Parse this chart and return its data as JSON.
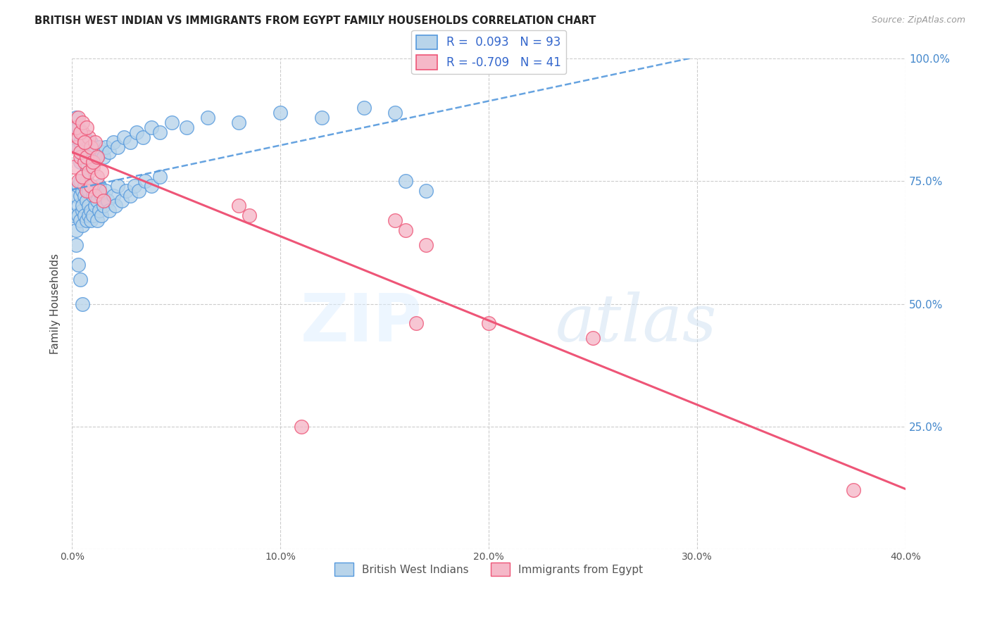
{
  "title": "BRITISH WEST INDIAN VS IMMIGRANTS FROM EGYPT FAMILY HOUSEHOLDS CORRELATION CHART",
  "source": "Source: ZipAtlas.com",
  "ylabel": "Family Households",
  "R_blue": 0.093,
  "N_blue": 93,
  "R_pink": -0.709,
  "N_pink": 41,
  "legend_label_blue": "British West Indians",
  "legend_label_pink": "Immigrants from Egypt",
  "blue_fill": "#b8d4ea",
  "pink_fill": "#f5b8c8",
  "blue_edge": "#5599dd",
  "pink_edge": "#ee5577",
  "blue_line_color": "#5599dd",
  "pink_line_color": "#ee5577",
  "watermark_zip": "ZIP",
  "watermark_atlas": "atlas",
  "xmin": 0.0,
  "xmax": 0.4,
  "ymin": 0.0,
  "ymax": 1.0,
  "seed": 77,
  "blue_x": [
    0.001,
    0.002,
    0.002,
    0.003,
    0.003,
    0.003,
    0.004,
    0.004,
    0.004,
    0.005,
    0.005,
    0.005,
    0.005,
    0.006,
    0.006,
    0.006,
    0.007,
    0.007,
    0.007,
    0.008,
    0.008,
    0.008,
    0.009,
    0.009,
    0.009,
    0.01,
    0.01,
    0.011,
    0.011,
    0.012,
    0.012,
    0.013,
    0.013,
    0.014,
    0.014,
    0.015,
    0.016,
    0.017,
    0.018,
    0.02,
    0.021,
    0.022,
    0.024,
    0.026,
    0.028,
    0.03,
    0.032,
    0.035,
    0.038,
    0.042,
    0.001,
    0.002,
    0.003,
    0.003,
    0.004,
    0.004,
    0.005,
    0.006,
    0.006,
    0.007,
    0.007,
    0.008,
    0.009,
    0.01,
    0.011,
    0.012,
    0.013,
    0.014,
    0.015,
    0.016,
    0.018,
    0.02,
    0.022,
    0.025,
    0.028,
    0.031,
    0.034,
    0.038,
    0.042,
    0.048,
    0.055,
    0.065,
    0.08,
    0.1,
    0.12,
    0.14,
    0.155,
    0.16,
    0.17,
    0.002,
    0.003,
    0.004,
    0.005
  ],
  "blue_y": [
    0.68,
    0.72,
    0.65,
    0.7,
    0.74,
    0.68,
    0.72,
    0.67,
    0.75,
    0.69,
    0.73,
    0.66,
    0.7,
    0.74,
    0.68,
    0.72,
    0.71,
    0.67,
    0.75,
    0.7,
    0.68,
    0.73,
    0.69,
    0.74,
    0.67,
    0.72,
    0.68,
    0.7,
    0.73,
    0.71,
    0.67,
    0.74,
    0.69,
    0.72,
    0.68,
    0.7,
    0.73,
    0.71,
    0.69,
    0.72,
    0.7,
    0.74,
    0.71,
    0.73,
    0.72,
    0.74,
    0.73,
    0.75,
    0.74,
    0.76,
    0.84,
    0.88,
    0.82,
    0.86,
    0.79,
    0.83,
    0.81,
    0.8,
    0.84,
    0.78,
    0.82,
    0.8,
    0.83,
    0.79,
    0.81,
    0.8,
    0.82,
    0.81,
    0.8,
    0.82,
    0.81,
    0.83,
    0.82,
    0.84,
    0.83,
    0.85,
    0.84,
    0.86,
    0.85,
    0.87,
    0.86,
    0.88,
    0.87,
    0.89,
    0.88,
    0.9,
    0.89,
    0.75,
    0.73,
    0.62,
    0.58,
    0.55,
    0.5
  ],
  "pink_x": [
    0.001,
    0.002,
    0.003,
    0.004,
    0.005,
    0.006,
    0.007,
    0.008,
    0.009,
    0.01,
    0.011,
    0.012,
    0.013,
    0.014,
    0.015,
    0.003,
    0.004,
    0.005,
    0.006,
    0.007,
    0.008,
    0.009,
    0.01,
    0.011,
    0.012,
    0.002,
    0.003,
    0.004,
    0.005,
    0.006,
    0.007,
    0.08,
    0.085,
    0.11,
    0.375,
    0.165,
    0.2,
    0.25,
    0.155,
    0.16,
    0.17
  ],
  "pink_y": [
    0.78,
    0.82,
    0.75,
    0.8,
    0.76,
    0.79,
    0.73,
    0.77,
    0.74,
    0.78,
    0.72,
    0.76,
    0.73,
    0.77,
    0.71,
    0.84,
    0.81,
    0.85,
    0.83,
    0.8,
    0.84,
    0.82,
    0.79,
    0.83,
    0.8,
    0.86,
    0.88,
    0.85,
    0.87,
    0.83,
    0.86,
    0.7,
    0.68,
    0.25,
    0.12,
    0.46,
    0.46,
    0.43,
    0.67,
    0.65,
    0.62
  ]
}
